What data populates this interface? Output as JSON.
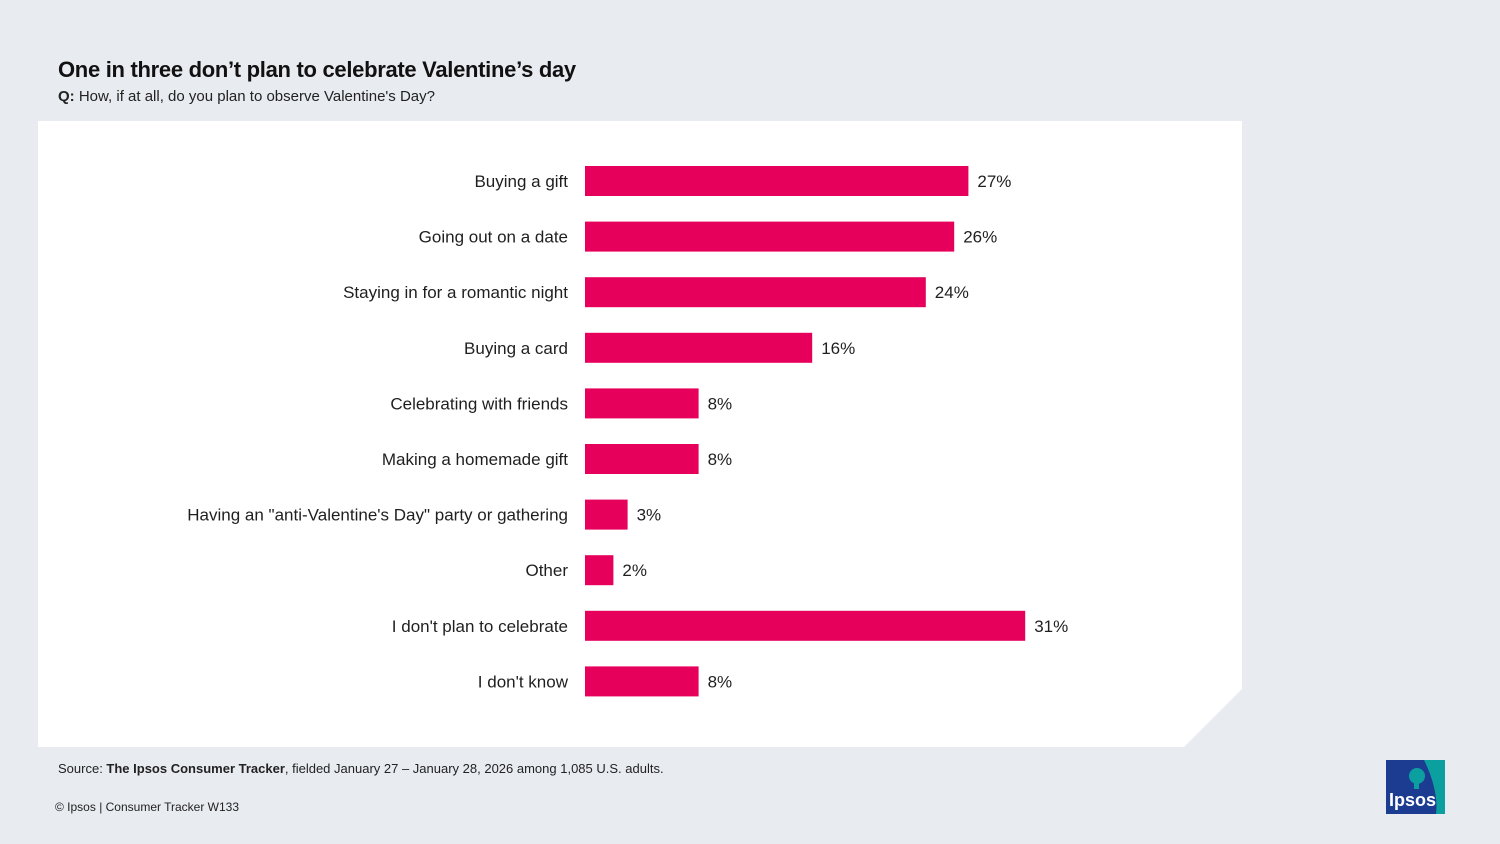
{
  "title": "One in three don’t plan to celebrate Valentine’s day",
  "question": {
    "prefix": "Q:",
    "text": "How, if at all, do you plan to observe Valentine's Day?"
  },
  "chart_data": {
    "type": "bar",
    "orientation": "horizontal",
    "categories": [
      "Buying a gift",
      "Going out on a date",
      "Staying in for a romantic night",
      "Buying a card",
      "Celebrating with friends",
      "Making a homemade gift",
      "Having an \"anti-Valentine's Day\" party or gathering",
      "Other",
      "I don't plan to celebrate",
      "I don't know"
    ],
    "values": [
      27,
      26,
      24,
      16,
      8,
      8,
      3,
      2,
      31,
      8
    ],
    "value_labels": [
      "27%",
      "26%",
      "24%",
      "16%",
      "8%",
      "8%",
      "3%",
      "2%",
      "31%",
      "8%"
    ],
    "xlim": [
      0,
      100
    ],
    "unit": "%",
    "bar_color": "#e6005c",
    "grid": false,
    "legend": "none"
  },
  "source": {
    "prefix": "Source: ",
    "name": "The Ipsos Consumer Tracker",
    "text": ", fielded January 27 – January 28, 2026 among 1,085 U.S. adults."
  },
  "copyright": "© Ipsos | Consumer Tracker W133",
  "logo": {
    "text": "Ipsos",
    "primary_color": "#1b3c91",
    "accent_color": "#0c9fa0"
  }
}
